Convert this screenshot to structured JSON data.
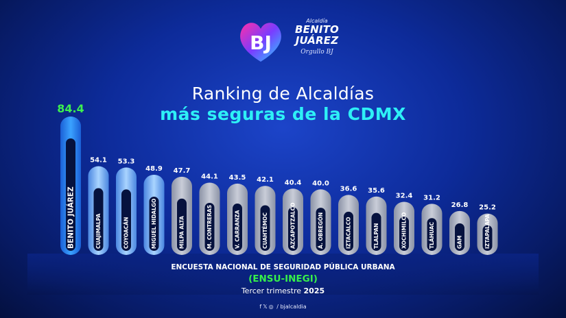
{
  "logo": {
    "initials": "BJ",
    "small": "Alcaldía",
    "line1": "BENITO",
    "line2": "JUÁREZ",
    "tagline": "Orgullo BJ"
  },
  "title_line1": "Ranking de Alcaldías",
  "title_line2": "más seguras de la CDMX",
  "chart_data": {
    "type": "bar",
    "title": "Ranking de Alcaldías más seguras de la CDMX",
    "categories": [
      "BENITO JUÁREZ",
      "CUAJIMALPA",
      "COYOACÁN",
      "MIGUEL HIDALGO",
      "MILPA ALTA",
      "M. CONTRERAS",
      "V. CARRANZA",
      "CUAHTÉMOC",
      "AZCAPOTZALCO",
      "Á. OBREGÓN",
      "IZTACALCO",
      "TLALPAN",
      "XOCHIMILCO",
      "TLÁHUAC",
      "GAM",
      "IZTAPALAPA"
    ],
    "values": [
      84.4,
      54.1,
      53.3,
      48.9,
      47.7,
      44.1,
      43.5,
      42.1,
      40.4,
      40.0,
      36.6,
      35.6,
      32.4,
      31.2,
      26.8,
      25.2
    ],
    "value_labels": [
      "84.4",
      "54.1",
      "53.3",
      "48.9",
      "47.7",
      "44.1",
      "43.5",
      "42.1",
      "40.4",
      "40.0",
      "36.6",
      "35.6",
      "32.4",
      "31.2",
      "26.8",
      "25.2"
    ],
    "highlight_color": "#3aa2ff",
    "light_blue_color": "#a9d4ff",
    "gray_color": "#8c93a6",
    "top_value_color": "#3df04f",
    "grid": false
  },
  "source": {
    "line1": "ENCUESTA NACIONAL DE SEGURIDAD PÚBLICA URBANA",
    "line2": "(ENSU-INEGI)",
    "line3_prefix": "Tercer trimestre",
    "line3_year": "2025"
  },
  "social": {
    "icons": [
      "facebook-icon",
      "x-icon",
      "instagram-icon"
    ],
    "handle": "/ bjalcaldia"
  }
}
